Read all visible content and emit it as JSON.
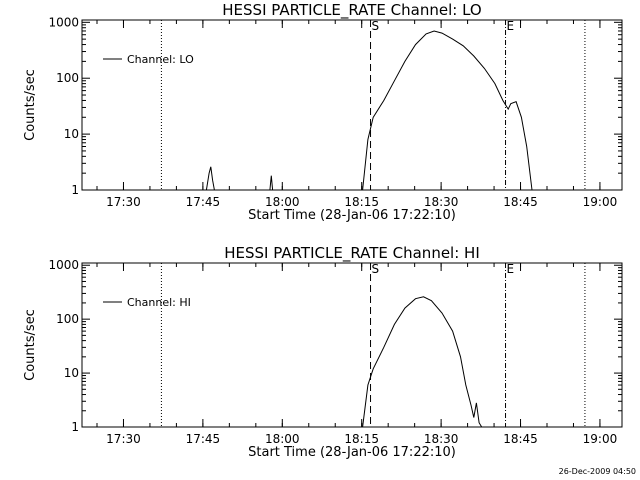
{
  "footer_stamp": "26-Dec-2009 04:50",
  "chart_data": [
    {
      "type": "line",
      "title": "HESSI PARTICLE_RATE Channel: LO",
      "xlabel": "Start Time (28-Jan-06 17:22:10)",
      "ylabel": "Counts/sec",
      "x_ticks": [
        "17:30",
        "17:45",
        "18:00",
        "18:15",
        "18:30",
        "18:45",
        "19:00"
      ],
      "y_ticks": [
        "1",
        "10",
        "100",
        "1000"
      ],
      "y_scale": "log",
      "ylim": [
        1,
        1100
      ],
      "xlim": [
        "17:22:10",
        "19:04:10"
      ],
      "legend": "top-left",
      "markers": [
        {
          "label": "S",
          "time": "18:16:40"
        },
        {
          "label": "E",
          "time": "18:42:10"
        }
      ],
      "dotted_lines": [
        "17:37:10",
        "18:57:10"
      ],
      "series": [
        {
          "name": "Channel: LO",
          "segments": [
            [
              [
                "17:45:40",
                1.0
              ],
              [
                "17:46:10",
                2.0
              ],
              [
                "17:46:30",
                2.6
              ],
              [
                "17:46:50",
                1.5
              ],
              [
                "17:47:10",
                1.0
              ]
            ],
            [
              [
                "17:57:40",
                1.0
              ],
              [
                "17:57:55",
                1.8
              ],
              [
                "17:58:10",
                1.0
              ]
            ],
            [
              [
                "18:15:10",
                1.0
              ],
              [
                "18:16:10",
                8
              ],
              [
                "18:17:10",
                20
              ],
              [
                "18:19:10",
                40
              ],
              [
                "18:21:10",
                90
              ],
              [
                "18:23:10",
                200
              ],
              [
                "18:25:10",
                400
              ],
              [
                "18:27:10",
                620
              ],
              [
                "18:28:40",
                700
              ],
              [
                "18:30:10",
                640
              ],
              [
                "18:32:10",
                500
              ],
              [
                "18:34:10",
                380
              ],
              [
                "18:36:10",
                250
              ],
              [
                "18:38:10",
                150
              ],
              [
                "18:40:10",
                80
              ],
              [
                "18:41:40",
                40
              ],
              [
                "18:42:40",
                28
              ],
              [
                "18:43:10",
                35
              ],
              [
                "18:44:10",
                38
              ],
              [
                "18:45:10",
                20
              ],
              [
                "18:46:10",
                6
              ],
              [
                "18:47:10",
                1.0
              ]
            ]
          ]
        }
      ]
    },
    {
      "type": "line",
      "title": "HESSI PARTICLE_RATE Channel: HI",
      "xlabel": "Start Time (28-Jan-06 17:22:10)",
      "ylabel": "Counts/sec",
      "x_ticks": [
        "17:30",
        "17:45",
        "18:00",
        "18:15",
        "18:30",
        "18:45",
        "19:00"
      ],
      "y_ticks": [
        "1",
        "10",
        "100",
        "1000"
      ],
      "y_scale": "log",
      "ylim": [
        1,
        1100
      ],
      "xlim": [
        "17:22:10",
        "19:04:10"
      ],
      "legend": "top-left",
      "markers": [
        {
          "label": "S",
          "time": "18:16:40"
        },
        {
          "label": "E",
          "time": "18:42:10"
        }
      ],
      "dotted_lines": [
        "17:37:10",
        "18:57:10"
      ],
      "series": [
        {
          "name": "Channel: HI",
          "segments": [
            [
              [
                "18:15:10",
                1.0
              ],
              [
                "18:16:10",
                6
              ],
              [
                "18:17:10",
                12
              ],
              [
                "18:19:10",
                30
              ],
              [
                "18:21:10",
                80
              ],
              [
                "18:23:10",
                160
              ],
              [
                "18:25:10",
                240
              ],
              [
                "18:26:40",
                260
              ],
              [
                "18:28:10",
                220
              ],
              [
                "18:30:10",
                130
              ],
              [
                "18:32:10",
                60
              ],
              [
                "18:33:40",
                20
              ],
              [
                "18:34:40",
                6
              ],
              [
                "18:35:40",
                2.5
              ],
              [
                "18:36:10",
                1.5
              ],
              [
                "18:36:40",
                2.8
              ],
              [
                "18:37:10",
                1.2
              ],
              [
                "18:37:40",
                1.0
              ]
            ]
          ]
        }
      ]
    }
  ]
}
